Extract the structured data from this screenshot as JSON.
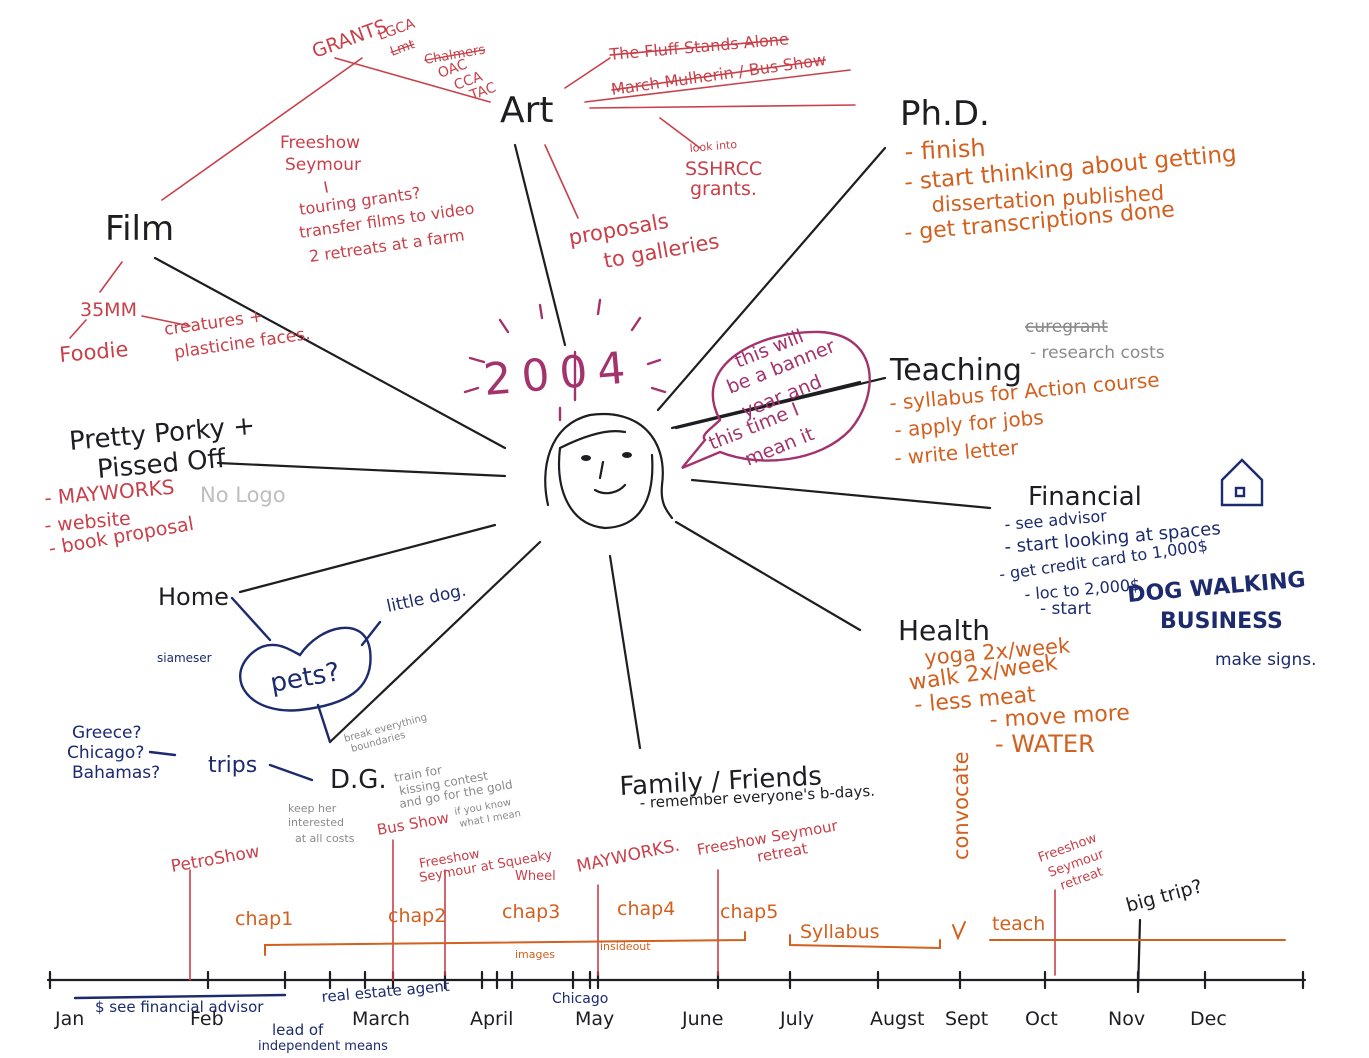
{
  "center": {
    "year": "2004",
    "bubble": [
      "this will",
      "be a banner",
      "year and",
      "this time I",
      "mean it"
    ]
  },
  "branches": [
    {
      "label": [
        "Art"
      ],
      "notes": [
        "GRANTS",
        "LGCA",
        "Lmt",
        "Chalmers",
        "OAC",
        "CCA",
        "TAC",
        "The Fluff Stands Alone",
        "March Mulherin / Bus Show",
        "look into",
        "SSHRCC",
        "grants.",
        "Freeshow",
        "Seymour",
        "touring grants?",
        "transfer films to video",
        "2 retreats at a farm",
        "proposals",
        "to galleries"
      ]
    },
    {
      "label": [
        "Film"
      ],
      "notes": [
        "35MM",
        "Foodie",
        "creatures +",
        "plasticine faces."
      ]
    },
    {
      "label": [
        "Ph.D."
      ],
      "notes": [
        "- finish",
        "- start thinking about getting",
        "dissertation published",
        "- get transcriptions done"
      ]
    },
    {
      "label": [
        "Teaching"
      ],
      "notes": [
        "curegrant",
        "- research costs",
        "- syllabus for Action course",
        "- apply for jobs",
        "- write letter"
      ]
    },
    {
      "label": [
        "Pretty Porky +",
        "Pissed Off"
      ],
      "notes": [
        "- MAYWORKS",
        "- website",
        "- book proposal",
        "No Logo"
      ]
    },
    {
      "label": [
        "Financial"
      ],
      "notes": [
        "- see advisor",
        "- start looking at spaces",
        "- get credit card to 1,000$",
        "- loc to 2,000$",
        "- start",
        "DOG WALKING",
        "BUSINESS",
        "make signs."
      ]
    },
    {
      "label": [
        "Health"
      ],
      "notes": [
        "yoga 2x/week",
        "walk 2x/week",
        "- less meat",
        "- move more",
        "- WATER"
      ]
    },
    {
      "label": [
        "Home"
      ],
      "notes": [
        "little dog.",
        "siameser",
        "pets?"
      ]
    },
    {
      "label": [
        "trips"
      ],
      "notes": [
        "Greece?",
        "Chicago?",
        "Bahamas?"
      ]
    },
    {
      "label": [
        "D.G."
      ],
      "notes": [
        "break everything",
        "boundaries",
        "train for",
        "kissing contest",
        "and go for the gold",
        "if you know",
        "what I mean",
        "keep her",
        "interested",
        "at all costs",
        "Bus Show"
      ]
    },
    {
      "label": [
        "Family / Friends"
      ],
      "notes": [
        "- remember everyone's b-days."
      ]
    }
  ],
  "timeline": {
    "months": [
      "Jan",
      "Feb",
      "March",
      "April",
      "May",
      "June",
      "July",
      "Augst",
      "Sept",
      "Oct",
      "Nov",
      "Dec"
    ],
    "events": [
      "PetroShow",
      "Freeshow",
      "Seymour at Squeaky",
      "Wheel",
      "MAYWORKS.",
      "Freeshow Seymour",
      "retreat",
      "Freeshow",
      "Seymour",
      "retreat",
      "convocate"
    ],
    "writing": [
      "chap1",
      "chap2",
      "chap3",
      "chap4",
      "chap5",
      "images",
      "insideout",
      "Syllabus",
      "teach"
    ],
    "money": [
      "$ see financial advisor",
      "real estate agent",
      "lead of",
      "independent means",
      "Chicago",
      "big trip?"
    ]
  }
}
